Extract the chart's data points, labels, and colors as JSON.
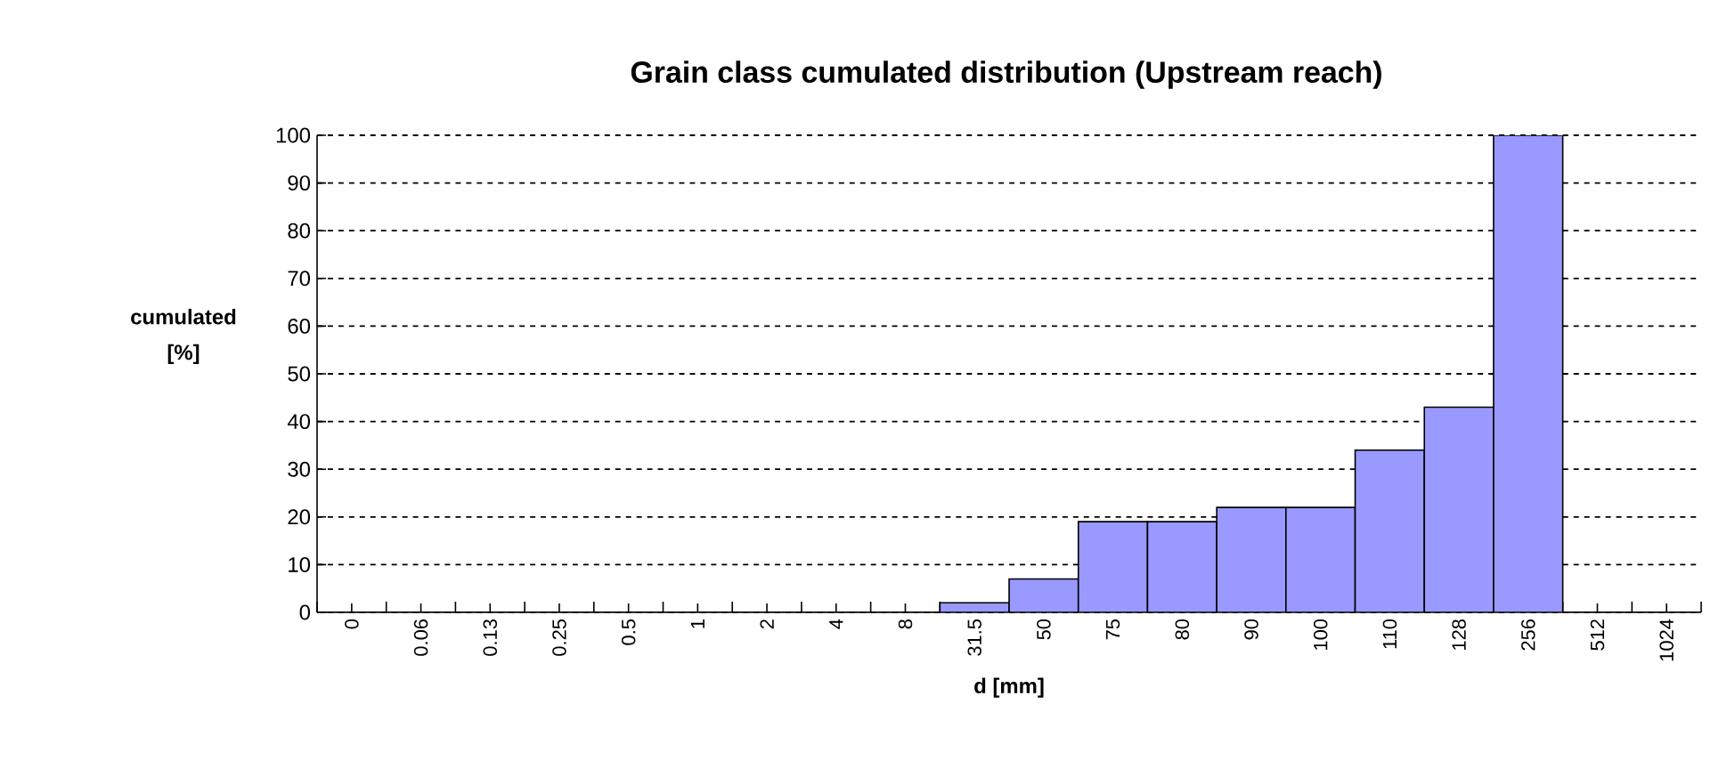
{
  "chart_data": {
    "type": "bar",
    "title": "Grain class cumulated distribution  (Upstream reach)",
    "xlabel": "d   [mm]",
    "ylabel": "cumulated [%]",
    "categories": [
      "0",
      "0.06",
      "0.13",
      "0.25",
      "0.5",
      "1",
      "2",
      "4",
      "8",
      "31.5",
      "50",
      "75",
      "80",
      "90",
      "100",
      "110",
      "128",
      "256",
      "512",
      "1024"
    ],
    "values": [
      0,
      0,
      0,
      0,
      0,
      0,
      0,
      0,
      0,
      2,
      7,
      19,
      19,
      22,
      22,
      34,
      43,
      100,
      0,
      0
    ],
    "color": "#9999ff",
    "ylim": [
      0,
      100
    ],
    "yticks": [
      0,
      10,
      20,
      30,
      40,
      50,
      60,
      70,
      80,
      90,
      100
    ],
    "grid": "y"
  }
}
